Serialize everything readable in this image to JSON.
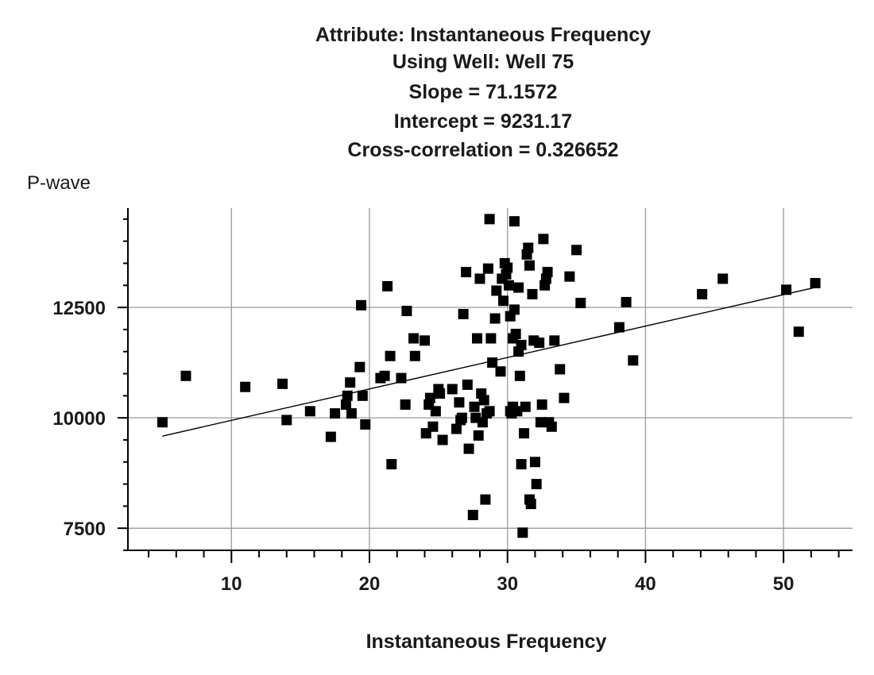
{
  "chart_data": {
    "type": "scatter",
    "title_lines": [
      "Attribute: Instantaneous Frequency",
      "Using Well: Well 75",
      "Slope = 71.1572",
      "Intercept = 9231.17",
      "Cross-correlation = 0.326652"
    ],
    "xlabel": "Instantaneous Frequency",
    "ylabel": "P-wave",
    "xlim": [
      2.5,
      55
    ],
    "ylim": [
      7000,
      14750
    ],
    "x_ticks": [
      10,
      20,
      30,
      40,
      50
    ],
    "y_ticks": [
      7500,
      10000,
      12500
    ],
    "x_minor_step": 2,
    "y_minor_step": 500,
    "grid": true,
    "regression": {
      "slope": 71.1572,
      "intercept": 9231.17,
      "x_range": [
        5,
        52.5
      ]
    },
    "colors": {
      "points": "#000000",
      "grid": "#9a9a9a",
      "axis": "#000000",
      "line": "#000000"
    },
    "points": [
      [
        5,
        9900
      ],
      [
        6.7,
        10950
      ],
      [
        11,
        10700
      ],
      [
        13.7,
        10770
      ],
      [
        14,
        9950
      ],
      [
        15.7,
        10150
      ],
      [
        17.2,
        9570
      ],
      [
        17.5,
        10100
      ],
      [
        18.3,
        10300
      ],
      [
        18.4,
        10500
      ],
      [
        18.6,
        10800
      ],
      [
        18.7,
        10100
      ],
      [
        19.3,
        11150
      ],
      [
        19.4,
        12550
      ],
      [
        19.5,
        10500
      ],
      [
        19.7,
        9850
      ],
      [
        20.8,
        10900
      ],
      [
        21.1,
        10950
      ],
      [
        21.3,
        12980
      ],
      [
        21.5,
        11400
      ],
      [
        21.6,
        8950
      ],
      [
        22.3,
        10900
      ],
      [
        22.6,
        10300
      ],
      [
        22.7,
        12420
      ],
      [
        23.2,
        11800
      ],
      [
        23.3,
        11400
      ],
      [
        24,
        11750
      ],
      [
        24.1,
        9650
      ],
      [
        24.3,
        10300
      ],
      [
        24.4,
        10450
      ],
      [
        24.6,
        9800
      ],
      [
        24.8,
        10150
      ],
      [
        25,
        10650
      ],
      [
        25.1,
        10550
      ],
      [
        25.3,
        9500
      ],
      [
        26,
        10650
      ],
      [
        26.3,
        9750
      ],
      [
        26.5,
        10350
      ],
      [
        26.6,
        9950
      ],
      [
        26.7,
        10000
      ],
      [
        26.8,
        12350
      ],
      [
        27,
        13300
      ],
      [
        27.1,
        10750
      ],
      [
        27.2,
        9300
      ],
      [
        27.5,
        7800
      ],
      [
        27.6,
        10250
      ],
      [
        27.7,
        10000
      ],
      [
        27.8,
        11800
      ],
      [
        27.9,
        9600
      ],
      [
        28,
        13150
      ],
      [
        28.1,
        10550
      ],
      [
        28.2,
        9900
      ],
      [
        28.3,
        10400
      ],
      [
        28.4,
        8150
      ],
      [
        28.5,
        10100
      ],
      [
        28.6,
        13380
      ],
      [
        28.7,
        10150
      ],
      [
        28.8,
        11800
      ],
      [
        28.9,
        11250
      ],
      [
        29.1,
        12250
      ],
      [
        29.2,
        12880
      ],
      [
        29.5,
        11050
      ],
      [
        29.7,
        12650
      ],
      [
        29.8,
        13500
      ],
      [
        29.9,
        13250
      ],
      [
        30,
        13400
      ],
      [
        30.1,
        13000
      ],
      [
        30.2,
        12300
      ],
      [
        30.3,
        10100
      ],
      [
        30.4,
        11800
      ],
      [
        30.5,
        12450
      ],
      [
        30.6,
        11900
      ],
      [
        30.7,
        10150
      ],
      [
        30.8,
        11500
      ],
      [
        30.9,
        10950
      ],
      [
        31,
        8950
      ],
      [
        31.1,
        7400
      ],
      [
        31.2,
        9650
      ],
      [
        31.3,
        10250
      ],
      [
        31.4,
        13700
      ],
      [
        31.5,
        13850
      ],
      [
        31.6,
        13450
      ],
      [
        31.7,
        8050
      ],
      [
        31.8,
        12800
      ],
      [
        31.9,
        11750
      ],
      [
        32,
        9000
      ],
      [
        32.1,
        8500
      ],
      [
        32.3,
        11700
      ],
      [
        32.4,
        9900
      ],
      [
        32.5,
        10300
      ],
      [
        32.6,
        14050
      ],
      [
        32.7,
        13000
      ],
      [
        32.8,
        13150
      ],
      [
        32.9,
        13300
      ],
      [
        33,
        9900
      ],
      [
        33.2,
        9800
      ],
      [
        30.5,
        14450
      ],
      [
        28.7,
        14500
      ],
      [
        29.6,
        13150
      ],
      [
        30.8,
        12950
      ],
      [
        30.2,
        10150
      ],
      [
        30.4,
        10250
      ],
      [
        31.0,
        11650
      ],
      [
        31.6,
        8150
      ],
      [
        33.4,
        11750
      ],
      [
        33.8,
        11100
      ],
      [
        34.1,
        10450
      ],
      [
        34.5,
        13200
      ],
      [
        35.0,
        13800
      ],
      [
        35.3,
        12600
      ],
      [
        38.1,
        12050
      ],
      [
        38.6,
        12620
      ],
      [
        39.1,
        11300
      ],
      [
        44.1,
        12800
      ],
      [
        45.6,
        13150
      ],
      [
        50.2,
        12900
      ],
      [
        51.1,
        11950
      ],
      [
        52.3,
        13050
      ]
    ]
  }
}
